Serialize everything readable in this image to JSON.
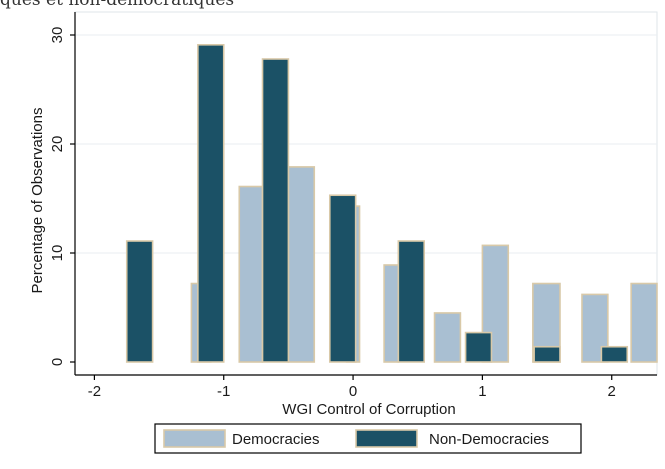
{
  "caption": "ques et non-démocratiques",
  "colors": {
    "democracies": "#a9bfd2",
    "non_democracies": "#1b5166",
    "bar_outline": "#d9c9a8",
    "axis": "#000000",
    "grid": "#e8edf1",
    "plot_border": "#dfe6ea"
  },
  "chart_data": {
    "type": "bar",
    "xlabel": "WGI Control of Corruption",
    "ylabel": "Percentage of Observations",
    "xlim": [
      -2.15,
      2.35
    ],
    "ylim": [
      0,
      30
    ],
    "xticks": [
      -2,
      -1,
      0,
      1,
      2
    ],
    "xtick_labels": [
      "-2",
      "-1",
      "0",
      "1",
      "2"
    ],
    "yticks": [
      0,
      10,
      20,
      30
    ],
    "ytick_labels": [
      "0",
      "10",
      "20",
      "30"
    ],
    "grid": true,
    "legend_position": "bottom",
    "series": [
      {
        "name": "Democracies",
        "color_key": "democracies",
        "bars": [
          {
            "x0": -1.25,
            "x1": -1.1,
            "value": 7.2
          },
          {
            "x0": -0.88,
            "x1": -0.7,
            "value": 16.1
          },
          {
            "x0": -0.5,
            "x1": -0.3,
            "value": 17.9
          },
          {
            "x0": -0.05,
            "x1": 0.05,
            "value": 14.3
          },
          {
            "x0": 0.24,
            "x1": 0.35,
            "value": 8.9
          },
          {
            "x0": 0.63,
            "x1": 0.83,
            "value": 4.5
          },
          {
            "x0": 1.0,
            "x1": 1.2,
            "value": 10.7
          },
          {
            "x0": 1.39,
            "x1": 1.6,
            "value": 7.2
          },
          {
            "x0": 1.77,
            "x1": 1.97,
            "value": 6.2
          },
          {
            "x0": 2.15,
            "x1": 2.35,
            "value": 7.2
          }
        ]
      },
      {
        "name": "Non-Democracies",
        "color_key": "non_democracies",
        "bars": [
          {
            "x0": -1.75,
            "x1": -1.55,
            "value": 11.1
          },
          {
            "x0": -1.2,
            "x1": -1.0,
            "value": 29.1
          },
          {
            "x0": -0.7,
            "x1": -0.5,
            "value": 27.8
          },
          {
            "x0": -0.18,
            "x1": 0.02,
            "value": 15.3
          },
          {
            "x0": 0.35,
            "x1": 0.55,
            "value": 11.1
          },
          {
            "x0": 0.87,
            "x1": 1.07,
            "value": 2.7
          },
          {
            "x0": 1.4,
            "x1": 1.6,
            "value": 1.4
          },
          {
            "x0": 1.92,
            "x1": 2.12,
            "value": 1.4
          }
        ]
      }
    ]
  }
}
